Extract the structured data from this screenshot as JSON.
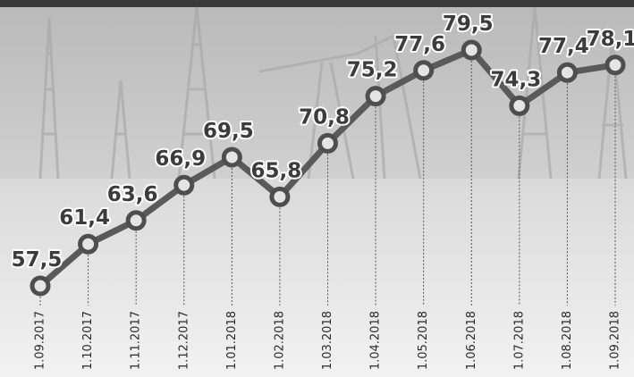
{
  "chart_data": {
    "type": "line",
    "categories": [
      "1.09.2017",
      "1.10.2017",
      "1.11.2017",
      "1.12.2017",
      "1.01.2018",
      "1.02.2018",
      "1.03.2018",
      "1.04.2018",
      "1.05.2018",
      "1.06.2018",
      "1.07.2018",
      "1.08.2018",
      "1.09.2018"
    ],
    "series": [
      {
        "color": "#5a5a5a",
        "values": [
          57.5,
          61.4,
          63.6,
          66.9,
          69.5,
          65.8,
          70.8,
          75.2,
          77.6,
          79.5,
          74.3,
          77.4,
          78.1
        ],
        "value_labels": [
          "57,5",
          "61,4",
          "63,6",
          "66,9",
          "69,5",
          "65,8",
          "70,8",
          "75,2",
          "77,6",
          "79,5",
          "74,3",
          "77,4",
          "78,1"
        ]
      }
    ]
  }
}
